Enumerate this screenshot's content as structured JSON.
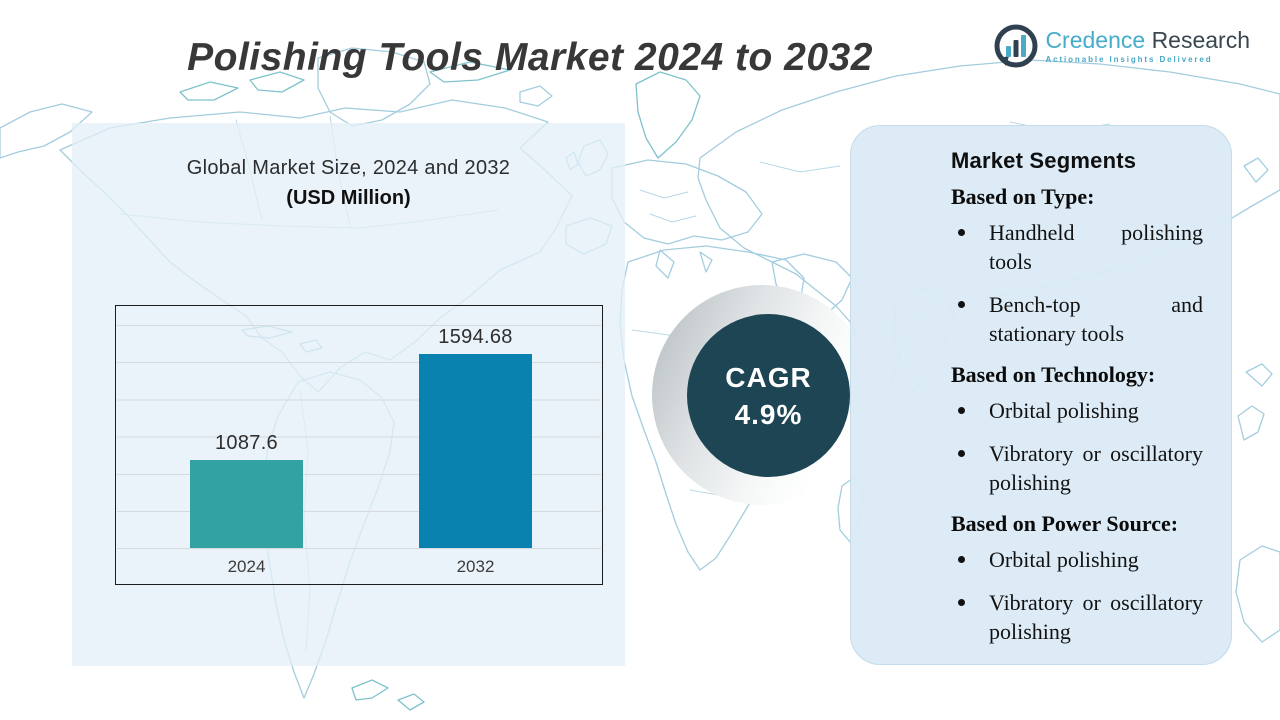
{
  "header": {
    "title": "Polishing Tools Market 2024 to 2032",
    "logo": {
      "brand_primary": "Credence",
      "brand_secondary": "Research",
      "tagline": "Actionable Insights Delivered",
      "icon": "bar-chart-circle-icon",
      "brand_color": "#45accb",
      "dark_color": "#3a4750"
    }
  },
  "market_size_panel": {
    "subtitle_line1": "Global Market Size, 2024 and 2032",
    "subtitle_line2": "(USD Million)"
  },
  "chart_data": {
    "type": "bar",
    "title": "Global Market Size, 2024 and 2032 (USD Million)",
    "categories": [
      "2024",
      "2032"
    ],
    "values": [
      1087.6,
      1594.68
    ],
    "value_labels": [
      "1087.6",
      "1594.68"
    ],
    "ylabel": "USD Million",
    "bar_colors": [
      "#32a3a2",
      "#0a82b0"
    ],
    "grid": true,
    "legend_position": "none"
  },
  "cagr": {
    "label": "CAGR",
    "value": "4.9%",
    "circle_color": "#1d4553"
  },
  "segments": {
    "title": "Market Segments",
    "sections": [
      {
        "heading": "Based on Type:",
        "items": [
          "Handheld polishing tools",
          "Bench-top and stationary tools"
        ]
      },
      {
        "heading": "Based on Technology:",
        "items": [
          "Orbital polishing",
          "Vibratory or oscillatory polishing"
        ]
      },
      {
        "heading": "Based on Power Source:",
        "items": [
          "Orbital polishing",
          "Vibratory or oscillatory polishing"
        ]
      }
    ]
  }
}
